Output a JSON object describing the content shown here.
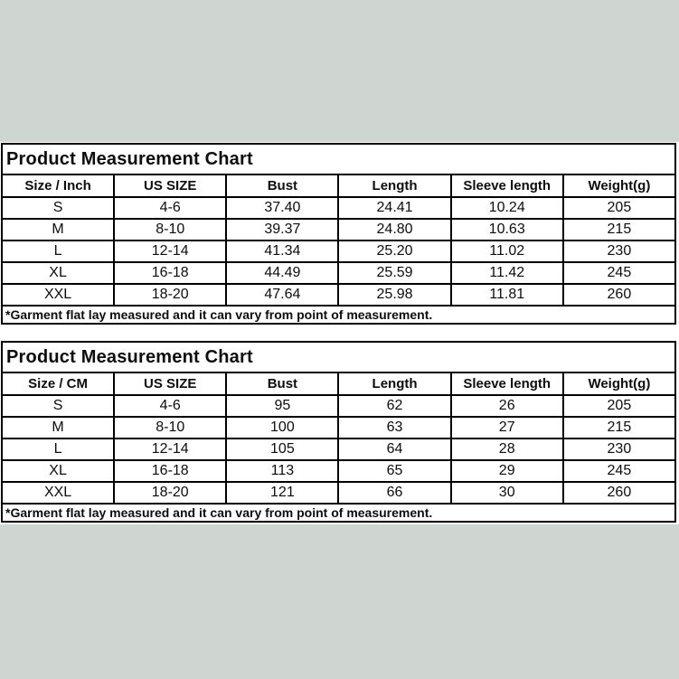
{
  "colors": {
    "band_bg": "#cfd6d2",
    "content_bg": "#ffffff",
    "table_border": "#000000",
    "text": "#0d0d0d"
  },
  "sections": [
    {
      "title": "Product Measurement Chart",
      "columns": [
        "Size / Inch",
        "US SIZE",
        "Bust",
        "Length",
        "Sleeve length",
        "Weight(g)"
      ],
      "rows": [
        [
          "S",
          "4-6",
          "37.40",
          "24.41",
          "10.24",
          "205"
        ],
        [
          "M",
          "8-10",
          "39.37",
          "24.80",
          "10.63",
          "215"
        ],
        [
          "L",
          "12-14",
          "41.34",
          "25.20",
          "11.02",
          "230"
        ],
        [
          "XL",
          "16-18",
          "44.49",
          "25.59",
          "11.42",
          "245"
        ],
        [
          "XXL",
          "18-20",
          "47.64",
          "25.98",
          "11.81",
          "260"
        ]
      ],
      "footnote": "*Garment flat lay measured and it can vary from point of measurement."
    },
    {
      "title": "Product Measurement Chart",
      "columns": [
        "Size / CM",
        "US SIZE",
        "Bust",
        "Length",
        "Sleeve length",
        "Weight(g)"
      ],
      "rows": [
        [
          "S",
          "4-6",
          "95",
          "62",
          "26",
          "205"
        ],
        [
          "M",
          "8-10",
          "100",
          "63",
          "27",
          "215"
        ],
        [
          "L",
          "12-14",
          "105",
          "64",
          "28",
          "230"
        ],
        [
          "XL",
          "16-18",
          "113",
          "65",
          "29",
          "245"
        ],
        [
          "XXL",
          "18-20",
          "121",
          "66",
          "30",
          "260"
        ]
      ],
      "footnote": "*Garment flat lay measured and it can vary from point of measurement."
    }
  ]
}
